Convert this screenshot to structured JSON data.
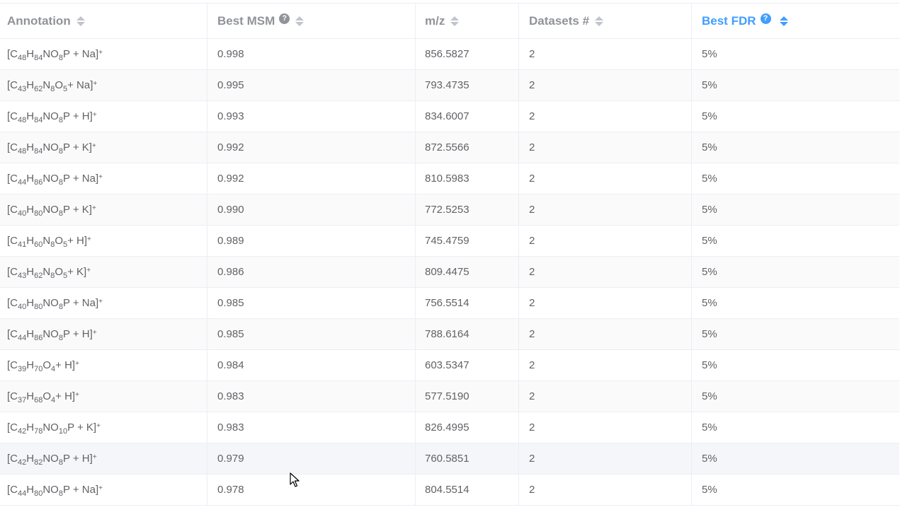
{
  "columns": [
    {
      "label": "Annotation",
      "help": false,
      "active": false
    },
    {
      "label": "Best MSM",
      "help": true,
      "active": false
    },
    {
      "label": "m/z",
      "help": false,
      "active": false
    },
    {
      "label": "Datasets #",
      "help": false,
      "active": false
    },
    {
      "label": "Best FDR",
      "help": true,
      "active": true
    }
  ],
  "colors": {
    "accent": "#409eff",
    "header_text": "#909399",
    "cell_text": "#606266"
  },
  "rows": [
    {
      "formula": [
        [
          "[C",
          ""
        ],
        [
          "48",
          "sub"
        ],
        [
          "H",
          ""
        ],
        [
          "84",
          "sub"
        ],
        [
          "NO",
          ""
        ],
        [
          "8",
          "sub"
        ],
        [
          "P + Na]",
          ""
        ],
        [
          "+",
          "sup"
        ]
      ],
      "msm": "0.998",
      "mz": "856.5827",
      "datasets": "2",
      "fdr": "5%"
    },
    {
      "formula": [
        [
          "[C",
          ""
        ],
        [
          "43",
          "sub"
        ],
        [
          "H",
          ""
        ],
        [
          "62",
          "sub"
        ],
        [
          "N",
          ""
        ],
        [
          "8",
          "sub"
        ],
        [
          "O",
          ""
        ],
        [
          "5",
          "sub"
        ],
        [
          " + Na]",
          ""
        ],
        [
          "+",
          "sup"
        ]
      ],
      "msm": "0.995",
      "mz": "793.4735",
      "datasets": "2",
      "fdr": "5%"
    },
    {
      "formula": [
        [
          "[C",
          ""
        ],
        [
          "48",
          "sub"
        ],
        [
          "H",
          ""
        ],
        [
          "84",
          "sub"
        ],
        [
          "NO",
          ""
        ],
        [
          "8",
          "sub"
        ],
        [
          "P + H]",
          ""
        ],
        [
          "+",
          "sup"
        ]
      ],
      "msm": "0.993",
      "mz": "834.6007",
      "datasets": "2",
      "fdr": "5%"
    },
    {
      "formula": [
        [
          "[C",
          ""
        ],
        [
          "48",
          "sub"
        ],
        [
          "H",
          ""
        ],
        [
          "84",
          "sub"
        ],
        [
          "NO",
          ""
        ],
        [
          "8",
          "sub"
        ],
        [
          "P + K]",
          ""
        ],
        [
          "+",
          "sup"
        ]
      ],
      "msm": "0.992",
      "mz": "872.5566",
      "datasets": "2",
      "fdr": "5%"
    },
    {
      "formula": [
        [
          "[C",
          ""
        ],
        [
          "44",
          "sub"
        ],
        [
          "H",
          ""
        ],
        [
          "86",
          "sub"
        ],
        [
          "NO",
          ""
        ],
        [
          "8",
          "sub"
        ],
        [
          "P + Na]",
          ""
        ],
        [
          "+",
          "sup"
        ]
      ],
      "msm": "0.992",
      "mz": "810.5983",
      "datasets": "2",
      "fdr": "5%"
    },
    {
      "formula": [
        [
          "[C",
          ""
        ],
        [
          "40",
          "sub"
        ],
        [
          "H",
          ""
        ],
        [
          "80",
          "sub"
        ],
        [
          "NO",
          ""
        ],
        [
          "8",
          "sub"
        ],
        [
          "P + K]",
          ""
        ],
        [
          "+",
          "sup"
        ]
      ],
      "msm": "0.990",
      "mz": "772.5253",
      "datasets": "2",
      "fdr": "5%"
    },
    {
      "formula": [
        [
          "[C",
          ""
        ],
        [
          "41",
          "sub"
        ],
        [
          "H",
          ""
        ],
        [
          "60",
          "sub"
        ],
        [
          "N",
          ""
        ],
        [
          "8",
          "sub"
        ],
        [
          "O",
          ""
        ],
        [
          "5",
          "sub"
        ],
        [
          " + H]",
          ""
        ],
        [
          "+",
          "sup"
        ]
      ],
      "msm": "0.989",
      "mz": "745.4759",
      "datasets": "2",
      "fdr": "5%"
    },
    {
      "formula": [
        [
          "[C",
          ""
        ],
        [
          "43",
          "sub"
        ],
        [
          "H",
          ""
        ],
        [
          "62",
          "sub"
        ],
        [
          "N",
          ""
        ],
        [
          "8",
          "sub"
        ],
        [
          "O",
          ""
        ],
        [
          "5",
          "sub"
        ],
        [
          " + K]",
          ""
        ],
        [
          "+",
          "sup"
        ]
      ],
      "msm": "0.986",
      "mz": "809.4475",
      "datasets": "2",
      "fdr": "5%"
    },
    {
      "formula": [
        [
          "[C",
          ""
        ],
        [
          "40",
          "sub"
        ],
        [
          "H",
          ""
        ],
        [
          "80",
          "sub"
        ],
        [
          "NO",
          ""
        ],
        [
          "8",
          "sub"
        ],
        [
          "P + Na]",
          ""
        ],
        [
          "+",
          "sup"
        ]
      ],
      "msm": "0.985",
      "mz": "756.5514",
      "datasets": "2",
      "fdr": "5%"
    },
    {
      "formula": [
        [
          "[C",
          ""
        ],
        [
          "44",
          "sub"
        ],
        [
          "H",
          ""
        ],
        [
          "86",
          "sub"
        ],
        [
          "NO",
          ""
        ],
        [
          "8",
          "sub"
        ],
        [
          "P + H]",
          ""
        ],
        [
          "+",
          "sup"
        ]
      ],
      "msm": "0.985",
      "mz": "788.6164",
      "datasets": "2",
      "fdr": "5%"
    },
    {
      "formula": [
        [
          "[C",
          ""
        ],
        [
          "39",
          "sub"
        ],
        [
          "H",
          ""
        ],
        [
          "70",
          "sub"
        ],
        [
          "O",
          ""
        ],
        [
          "4",
          "sub"
        ],
        [
          " + H]",
          ""
        ],
        [
          "+",
          "sup"
        ]
      ],
      "msm": "0.984",
      "mz": "603.5347",
      "datasets": "2",
      "fdr": "5%"
    },
    {
      "formula": [
        [
          "[C",
          ""
        ],
        [
          "37",
          "sub"
        ],
        [
          "H",
          ""
        ],
        [
          "68",
          "sub"
        ],
        [
          "O",
          ""
        ],
        [
          "4",
          "sub"
        ],
        [
          " + H]",
          ""
        ],
        [
          "+",
          "sup"
        ]
      ],
      "msm": "0.983",
      "mz": "577.5190",
      "datasets": "2",
      "fdr": "5%"
    },
    {
      "formula": [
        [
          "[C",
          ""
        ],
        [
          "42",
          "sub"
        ],
        [
          "H",
          ""
        ],
        [
          "78",
          "sub"
        ],
        [
          "NO",
          ""
        ],
        [
          "10",
          "sub"
        ],
        [
          "P + K]",
          ""
        ],
        [
          "+",
          "sup"
        ]
      ],
      "msm": "0.983",
      "mz": "826.4995",
      "datasets": "2",
      "fdr": "5%"
    },
    {
      "formula": [
        [
          "[C",
          ""
        ],
        [
          "42",
          "sub"
        ],
        [
          "H",
          ""
        ],
        [
          "82",
          "sub"
        ],
        [
          "NO",
          ""
        ],
        [
          "8",
          "sub"
        ],
        [
          "P + H]",
          ""
        ],
        [
          "+",
          "sup"
        ]
      ],
      "msm": "0.979",
      "mz": "760.5851",
      "datasets": "2",
      "fdr": "5%"
    },
    {
      "formula": [
        [
          "[C",
          ""
        ],
        [
          "44",
          "sub"
        ],
        [
          "H",
          ""
        ],
        [
          "80",
          "sub"
        ],
        [
          "NO",
          ""
        ],
        [
          "8",
          "sub"
        ],
        [
          "P + Na]",
          ""
        ],
        [
          "+",
          "sup"
        ]
      ],
      "msm": "0.978",
      "mz": "804.5514",
      "datasets": "2",
      "fdr": "5%"
    }
  ]
}
